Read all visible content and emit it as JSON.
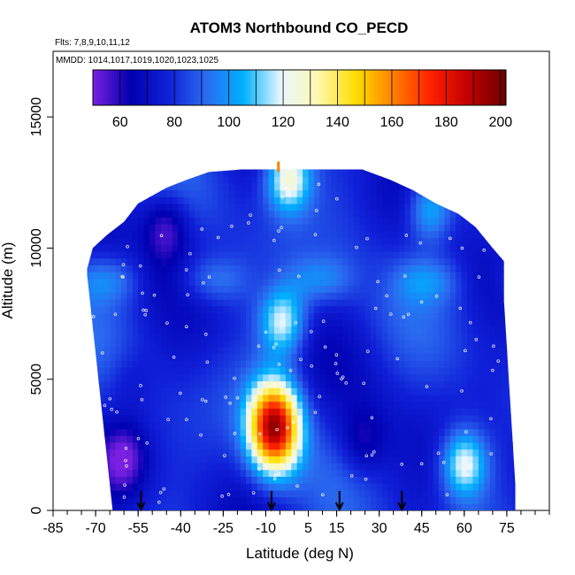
{
  "chart_data": {
    "type": "heatmap",
    "title": "ATOM3 Northbound CO_PECD",
    "subtitle_flights": "Flts: 7,8,9,10,11,12",
    "subtitle_dates": "MMDD: 1014,1017,1019,1020,1023,1025",
    "xlabel": "Latitude (deg N)",
    "ylabel": "Altitude (m)",
    "xlim": [
      -85,
      90
    ],
    "ylim": [
      0,
      17500
    ],
    "x_ticks": [
      -85,
      -70,
      -55,
      -40,
      -25,
      -10,
      5,
      15,
      30,
      45,
      60,
      75
    ],
    "y_ticks": [
      0,
      5000,
      10000,
      15000
    ],
    "colorbar": {
      "range": [
        50,
        202
      ],
      "ticks": [
        60,
        80,
        100,
        120,
        140,
        160,
        180,
        200
      ],
      "colors": [
        "#7b20e0",
        "#0000b0",
        "#1020d8",
        "#2a6af0",
        "#00b0ff",
        "#e8f6ff",
        "#fff8b0",
        "#ffdd00",
        "#ff8000",
        "#ff2000",
        "#c00000",
        "#6a0000"
      ]
    },
    "profile_markers_lat": [
      -54,
      -8,
      16,
      38
    ],
    "field": {
      "lat_range": [
        -73,
        78
      ],
      "alt_range": [
        0,
        13000
      ],
      "background_value": 78,
      "features": [
        {
          "lat": -7,
          "alt": 3200,
          "value": 192,
          "description_key": "tropical plume peak"
        },
        {
          "lat": -4,
          "alt": 7200,
          "value": 120
        },
        {
          "lat": -2,
          "alt": 12700,
          "value": 130
        },
        {
          "lat": 48,
          "alt": 11500,
          "value": 112
        },
        {
          "lat": 60,
          "alt": 1800,
          "value": 125
        },
        {
          "lat": 24,
          "alt": 2600,
          "value": 62
        },
        {
          "lat": -60,
          "alt": 2000,
          "value": 55
        },
        {
          "lat": -45,
          "alt": 10800,
          "value": 55
        },
        {
          "lat": -58,
          "alt": 5000,
          "value": 70
        }
      ]
    }
  }
}
